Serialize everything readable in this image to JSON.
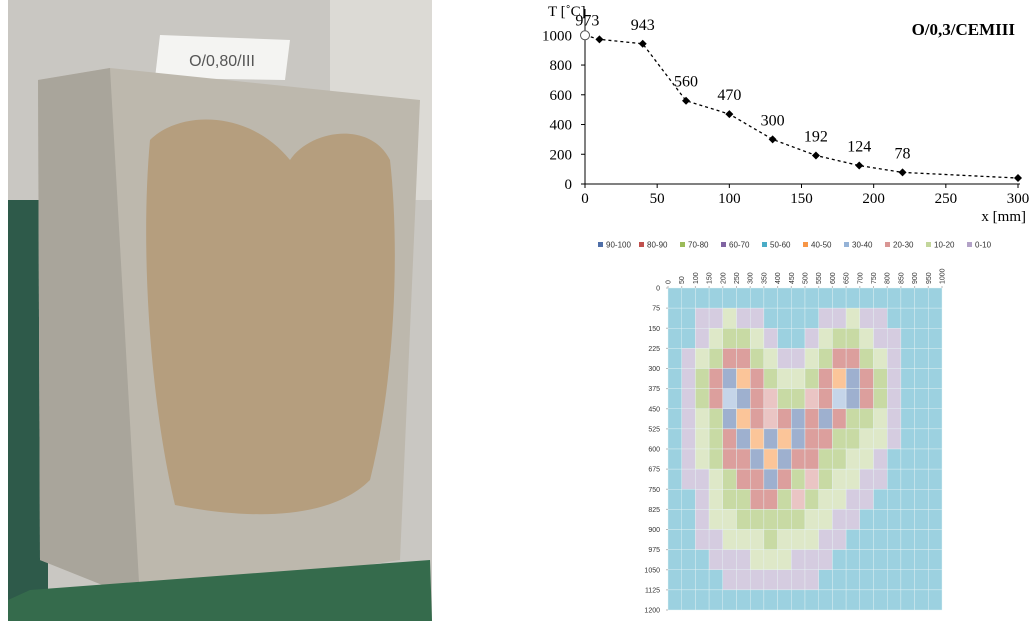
{
  "photo": {
    "label": "O/0,80/III"
  },
  "chart_data": [
    {
      "type": "line",
      "title": "O/0,3/CEMIII",
      "x_label": "x [mm]",
      "y_label": "T [˚C]",
      "x": [
        0,
        10,
        40,
        70,
        100,
        130,
        160,
        190,
        220,
        300
      ],
      "series": [
        {
          "color": "#000000",
          "values": [
            1000,
            973,
            943,
            560,
            470,
            300,
            192,
            124,
            78,
            40
          ],
          "value_labels": [
            null,
            "973",
            "943",
            "560",
            "470",
            "300",
            "192",
            "124",
            "78",
            null
          ]
        }
      ],
      "xlim": [
        0,
        300
      ],
      "xticks": [
        0,
        50,
        100,
        150,
        200,
        250,
        300
      ],
      "ylim": [
        0,
        1150
      ],
      "yticks": [
        0,
        200,
        400,
        600,
        800,
        1000
      ]
    },
    {
      "type": "heatmap",
      "series": [
        {
          "name": "90-100",
          "color": "#4f6fa8"
        },
        {
          "name": "80-90",
          "color": "#c0504d"
        },
        {
          "name": "70-80",
          "color": "#9bbb59"
        },
        {
          "name": "60-70",
          "color": "#8064a2"
        },
        {
          "name": "50-60",
          "color": "#4bacc6"
        },
        {
          "name": "40-50",
          "color": "#f79646"
        },
        {
          "name": "30-40",
          "color": "#95b3d7"
        },
        {
          "name": "20-30",
          "color": "#d99694"
        },
        {
          "name": "10-20",
          "color": "#c3d69b"
        },
        {
          "name": "0-10",
          "color": "#b3a2c7"
        }
      ],
      "xlim": [
        0,
        1000
      ],
      "xticks": [
        0,
        50,
        100,
        150,
        200,
        250,
        300,
        350,
        400,
        450,
        500,
        550,
        600,
        650,
        700,
        750,
        800,
        850,
        900,
        950,
        1000
      ],
      "ylim": [
        0,
        1200
      ],
      "y_reversed": true,
      "yticks": [
        0,
        75,
        150,
        225,
        300,
        375,
        450,
        525,
        600,
        675,
        750,
        825,
        900,
        975,
        1050,
        1125,
        1200
      ],
      "z": [
        [
          55,
          55,
          55,
          55,
          55,
          55,
          55,
          55,
          55,
          55,
          55,
          55,
          55,
          55,
          55,
          55,
          55,
          55,
          55,
          55
        ],
        [
          55,
          55,
          5,
          5,
          15,
          5,
          5,
          55,
          55,
          55,
          55,
          5,
          5,
          15,
          5,
          5,
          55,
          55,
          55,
          55
        ],
        [
          55,
          55,
          5,
          15,
          75,
          75,
          15,
          5,
          55,
          55,
          5,
          15,
          75,
          75,
          15,
          5,
          5,
          55,
          55,
          55
        ],
        [
          55,
          5,
          15,
          75,
          85,
          85,
          75,
          15,
          5,
          5,
          15,
          75,
          85,
          85,
          75,
          15,
          5,
          55,
          55,
          55
        ],
        [
          55,
          5,
          75,
          85,
          95,
          45,
          85,
          75,
          15,
          15,
          75,
          85,
          45,
          95,
          85,
          75,
          5,
          55,
          55,
          55
        ],
        [
          55,
          5,
          75,
          85,
          35,
          95,
          85,
          25,
          75,
          75,
          25,
          85,
          35,
          95,
          85,
          75,
          5,
          55,
          55,
          55
        ],
        [
          55,
          5,
          15,
          75,
          95,
          45,
          85,
          25,
          85,
          95,
          85,
          95,
          85,
          75,
          75,
          15,
          5,
          55,
          55,
          55
        ],
        [
          55,
          5,
          15,
          75,
          85,
          95,
          45,
          95,
          45,
          95,
          85,
          85,
          75,
          75,
          15,
          15,
          5,
          55,
          55,
          55
        ],
        [
          55,
          5,
          15,
          75,
          85,
          85,
          95,
          45,
          95,
          85,
          85,
          75,
          75,
          15,
          15,
          5,
          55,
          55,
          55,
          55
        ],
        [
          55,
          5,
          5,
          15,
          75,
          85,
          85,
          95,
          85,
          75,
          25,
          75,
          15,
          15,
          5,
          5,
          55,
          55,
          55,
          55
        ],
        [
          55,
          55,
          5,
          15,
          75,
          75,
          85,
          85,
          75,
          25,
          75,
          15,
          15,
          5,
          5,
          55,
          55,
          55,
          55,
          55
        ],
        [
          55,
          55,
          5,
          15,
          15,
          75,
          75,
          75,
          75,
          75,
          15,
          15,
          5,
          5,
          55,
          55,
          55,
          55,
          55,
          55
        ],
        [
          55,
          55,
          5,
          5,
          15,
          15,
          15,
          75,
          15,
          15,
          15,
          5,
          5,
          55,
          55,
          55,
          55,
          55,
          55,
          55
        ],
        [
          55,
          55,
          55,
          5,
          5,
          5,
          15,
          15,
          15,
          5,
          5,
          5,
          55,
          55,
          55,
          55,
          55,
          55,
          55,
          55
        ],
        [
          55,
          55,
          55,
          55,
          5,
          5,
          5,
          5,
          5,
          5,
          5,
          55,
          55,
          55,
          55,
          55,
          55,
          55,
          55,
          55
        ],
        [
          55,
          55,
          55,
          55,
          55,
          55,
          55,
          55,
          55,
          55,
          55,
          55,
          55,
          55,
          55,
          55,
          55,
          55,
          55,
          55
        ]
      ]
    }
  ]
}
